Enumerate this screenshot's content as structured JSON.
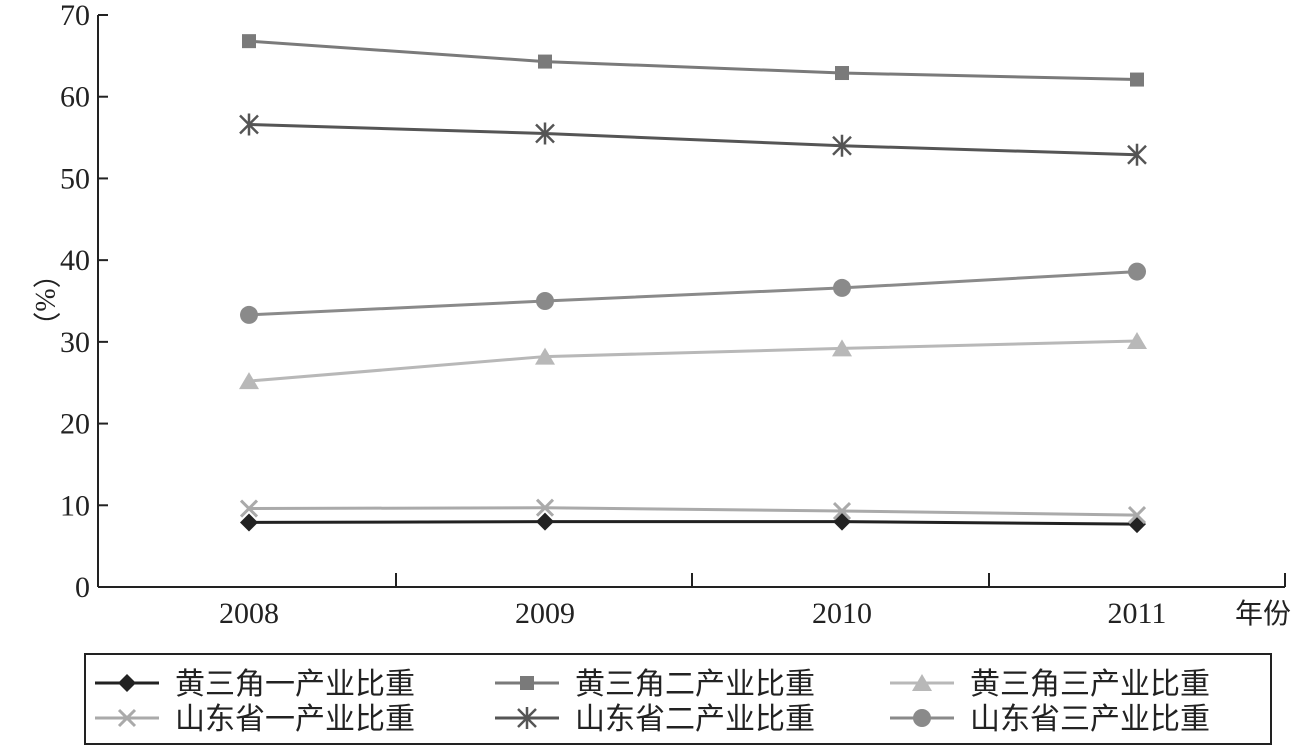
{
  "chart_data": {
    "type": "line",
    "ylabel": "（%）",
    "xlabel": "年份",
    "ylim": [
      0,
      70
    ],
    "yticks": [
      0,
      10,
      20,
      30,
      40,
      50,
      60,
      70
    ],
    "x": [
      "2008",
      "2009",
      "2010",
      "2011"
    ],
    "grid": false,
    "legend_position": "bottom",
    "series": [
      {
        "name": "黄三角一产业比重",
        "values": [
          7.9,
          8.0,
          8.0,
          7.7
        ],
        "color": "#222222",
        "marker": "diamond"
      },
      {
        "name": "黄三角二产业比重",
        "values": [
          66.8,
          64.3,
          62.9,
          62.1
        ],
        "color": "#7a7a7a",
        "marker": "square"
      },
      {
        "name": "黄三角三产业比重",
        "values": [
          25.2,
          28.2,
          29.2,
          30.1
        ],
        "color": "#b8b8b8",
        "marker": "triangle"
      },
      {
        "name": "山东省一产业比重",
        "values": [
          9.6,
          9.7,
          9.3,
          8.8
        ],
        "color": "#aaaaaa",
        "marker": "x"
      },
      {
        "name": "山东省二产业比重",
        "values": [
          56.6,
          55.5,
          54.0,
          52.9
        ],
        "color": "#555555",
        "marker": "asterisk"
      },
      {
        "name": "山东省三产业比重",
        "values": [
          33.3,
          35.0,
          36.6,
          38.6
        ],
        "color": "#8a8a8a",
        "marker": "circle"
      }
    ]
  }
}
